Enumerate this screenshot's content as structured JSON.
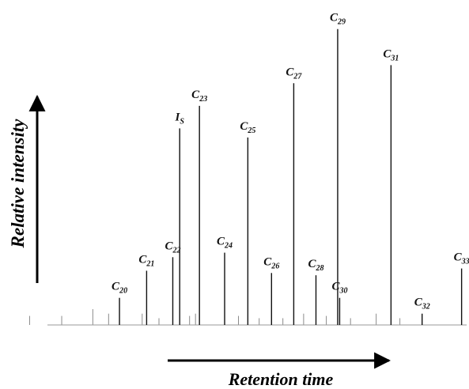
{
  "chart_data": {
    "type": "line",
    "title": "",
    "xlabel": "Retention time",
    "ylabel": "Relative intensity",
    "axes_show_ticks": false,
    "grid": false,
    "legend": "none",
    "colors": {
      "trace": "#111111",
      "axis": "#000000",
      "noise": "#8a8a8a"
    },
    "series": [
      {
        "values": [
          {
            "label": "C20",
            "base": "C",
            "sub": "20",
            "x": 0.292,
            "y": 0.12
          },
          {
            "label": "C21",
            "base": "C",
            "sub": "21",
            "x": 0.347,
            "y": 0.24
          },
          {
            "label": "C22",
            "base": "C",
            "sub": "22",
            "x": 0.4,
            "y": 0.3
          },
          {
            "label": "IS",
            "base": "I",
            "sub": "S",
            "x": 0.414,
            "y": 0.87
          },
          {
            "label": "C23",
            "base": "C",
            "sub": "23",
            "x": 0.454,
            "y": 0.97
          },
          {
            "label": "C24",
            "base": "C",
            "sub": "24",
            "x": 0.505,
            "y": 0.32
          },
          {
            "label": "C25",
            "base": "C",
            "sub": "25",
            "x": 0.552,
            "y": 0.83
          },
          {
            "label": "C26",
            "base": "C",
            "sub": "26",
            "x": 0.6,
            "y": 0.23
          },
          {
            "label": "C27",
            "base": "C",
            "sub": "27",
            "x": 0.645,
            "y": 1.07
          },
          {
            "label": "C28",
            "base": "C",
            "sub": "28",
            "x": 0.69,
            "y": 0.22
          },
          {
            "label": "C29",
            "base": "C",
            "sub": "29",
            "x": 0.734,
            "y": 1.31
          },
          {
            "label": "C30",
            "base": "C",
            "sub": "30",
            "x": 0.738,
            "y": 0.12
          },
          {
            "label": "C31",
            "base": "C",
            "sub": "31",
            "x": 0.842,
            "y": 1.15
          },
          {
            "label": "C32",
            "base": "C",
            "sub": "32",
            "x": 0.905,
            "y": 0.05
          },
          {
            "label": "C33",
            "base": "C",
            "sub": "33",
            "x": 0.985,
            "y": 0.25
          }
        ]
      }
    ],
    "minor_peaks": [
      {
        "x": 0.11,
        "y": 0.04
      },
      {
        "x": 0.175,
        "y": 0.04
      },
      {
        "x": 0.238,
        "y": 0.07
      },
      {
        "x": 0.27,
        "y": 0.05
      },
      {
        "x": 0.338,
        "y": 0.05
      },
      {
        "x": 0.372,
        "y": 0.03
      },
      {
        "x": 0.434,
        "y": 0.04
      },
      {
        "x": 0.446,
        "y": 0.05
      },
      {
        "x": 0.533,
        "y": 0.04
      },
      {
        "x": 0.575,
        "y": 0.03
      },
      {
        "x": 0.623,
        "y": 0.03
      },
      {
        "x": 0.665,
        "y": 0.05
      },
      {
        "x": 0.711,
        "y": 0.04
      },
      {
        "x": 0.76,
        "y": 0.03
      },
      {
        "x": 0.812,
        "y": 0.05
      },
      {
        "x": 0.86,
        "y": 0.03
      }
    ],
    "xlim": [
      0.05,
      1.0
    ],
    "ylim": [
      0,
      1.4
    ]
  }
}
